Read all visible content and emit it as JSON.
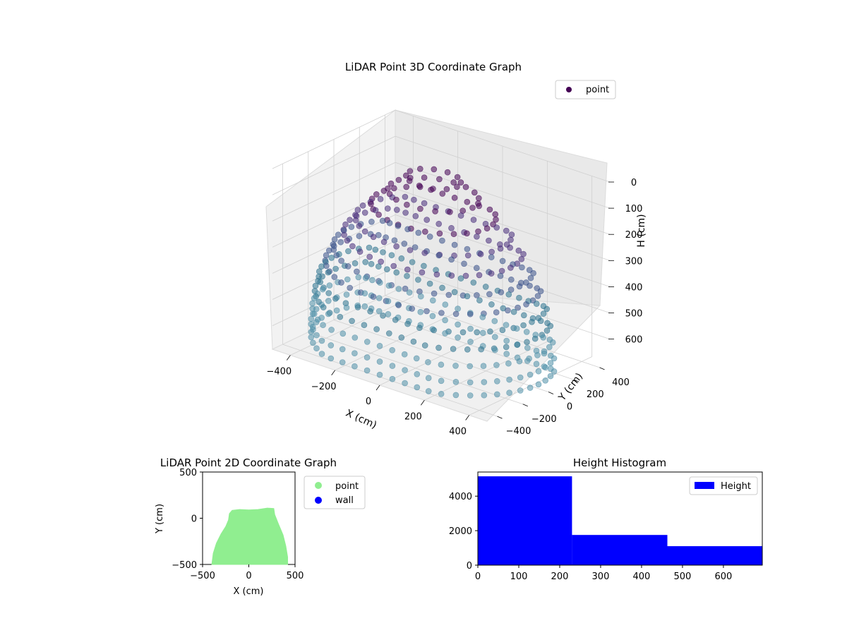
{
  "colors": {
    "purple": "#440154",
    "mid": "#3b528b",
    "teal": "#5f93ae",
    "light_blue": "#a3c3d6",
    "green": "#90ee90",
    "blue": "#0000ff",
    "gray_pane": "#f2f2f2"
  },
  "chart_data": [
    {
      "type": "scatter",
      "title": "LiDAR Point 3D Coordinate Graph",
      "projection": "3d",
      "xlabel": "X (cm)",
      "ylabel": "Y (cm)",
      "zlabel": "H (cm)",
      "x_ticks": [
        "−400",
        "−200",
        "0",
        "200",
        "400"
      ],
      "y_ticks": [
        "−400",
        "−200",
        "0",
        "200",
        "400"
      ],
      "z_ticks": [
        "0",
        "100",
        "200",
        "300",
        "400",
        "500",
        "600"
      ],
      "xlim": [
        -480,
        480
      ],
      "ylim": [
        -480,
        480
      ],
      "zlim": [
        0,
        690
      ],
      "z_axis_inverted": true,
      "legend": {
        "entries": [
          "point"
        ],
        "position": "top-right"
      },
      "series": [
        {
          "name": "point",
          "colormap": "viridis",
          "color_by": "height",
          "description_values": "ring of LiDAR points from the sensor; radius grows with height",
          "rings": [
            {
              "h": 0,
              "r": 105
            },
            {
              "h": 60,
              "r": 175
            },
            {
              "h": 120,
              "r": 240
            },
            {
              "h": 180,
              "r": 300
            },
            {
              "h": 240,
              "r": 345
            },
            {
              "h": 300,
              "r": 385
            },
            {
              "h": 360,
              "r": 415
            },
            {
              "h": 420,
              "r": 440
            },
            {
              "h": 480,
              "r": 455
            },
            {
              "h": 540,
              "r": 465
            },
            {
              "h": 600,
              "r": 470
            },
            {
              "h": 650,
              "r": 470
            }
          ]
        }
      ]
    },
    {
      "type": "scatter",
      "title": "LiDAR Point 2D Coordinate Graph",
      "xlabel": "X (cm)",
      "ylabel": "Y (cm)",
      "x_ticks": [
        "−500",
        "0",
        "500"
      ],
      "y_ticks": [
        "−500",
        "0",
        "500"
      ],
      "xlim": [
        -500,
        500
      ],
      "ylim": [
        -500,
        500
      ],
      "legend": {
        "entries": [
          "point",
          "wall"
        ],
        "position": "outside-right"
      },
      "series": [
        {
          "name": "point",
          "color": "#90ee90",
          "outline": [
            [
              -400,
              -500
            ],
            [
              -385,
              -380
            ],
            [
              -350,
              -270
            ],
            [
              -300,
              -170
            ],
            [
              -250,
              -90
            ],
            [
              -220,
              -20
            ],
            [
              -210,
              50
            ],
            [
              -180,
              85
            ],
            [
              -100,
              95
            ],
            [
              0,
              90
            ],
            [
              100,
              95
            ],
            [
              200,
              110
            ],
            [
              270,
              105
            ],
            [
              280,
              40
            ],
            [
              320,
              -60
            ],
            [
              370,
              -180
            ],
            [
              400,
              -300
            ],
            [
              420,
              -420
            ],
            [
              420,
              -500
            ]
          ]
        },
        {
          "name": "wall",
          "color": "#0000ff",
          "points": []
        }
      ]
    },
    {
      "type": "bar",
      "title": "Height Histogram",
      "xlabel": "",
      "ylabel": "",
      "x_ticks": [
        "0",
        "100",
        "200",
        "300",
        "400",
        "500",
        "600"
      ],
      "y_ticks": [
        "0",
        "2000",
        "4000"
      ],
      "xlim": [
        0,
        695
      ],
      "ylim": [
        0,
        5400
      ],
      "legend": {
        "entries": [
          "Height"
        ],
        "position": "top-right"
      },
      "series": [
        {
          "name": "Height",
          "color": "#0000ff",
          "bins": [
            {
              "x0": 0,
              "x1": 230,
              "count": 5150
            },
            {
              "x0": 230,
              "x1": 463,
              "count": 1750
            },
            {
              "x0": 463,
              "x1": 695,
              "count": 1100
            }
          ]
        }
      ]
    }
  ]
}
